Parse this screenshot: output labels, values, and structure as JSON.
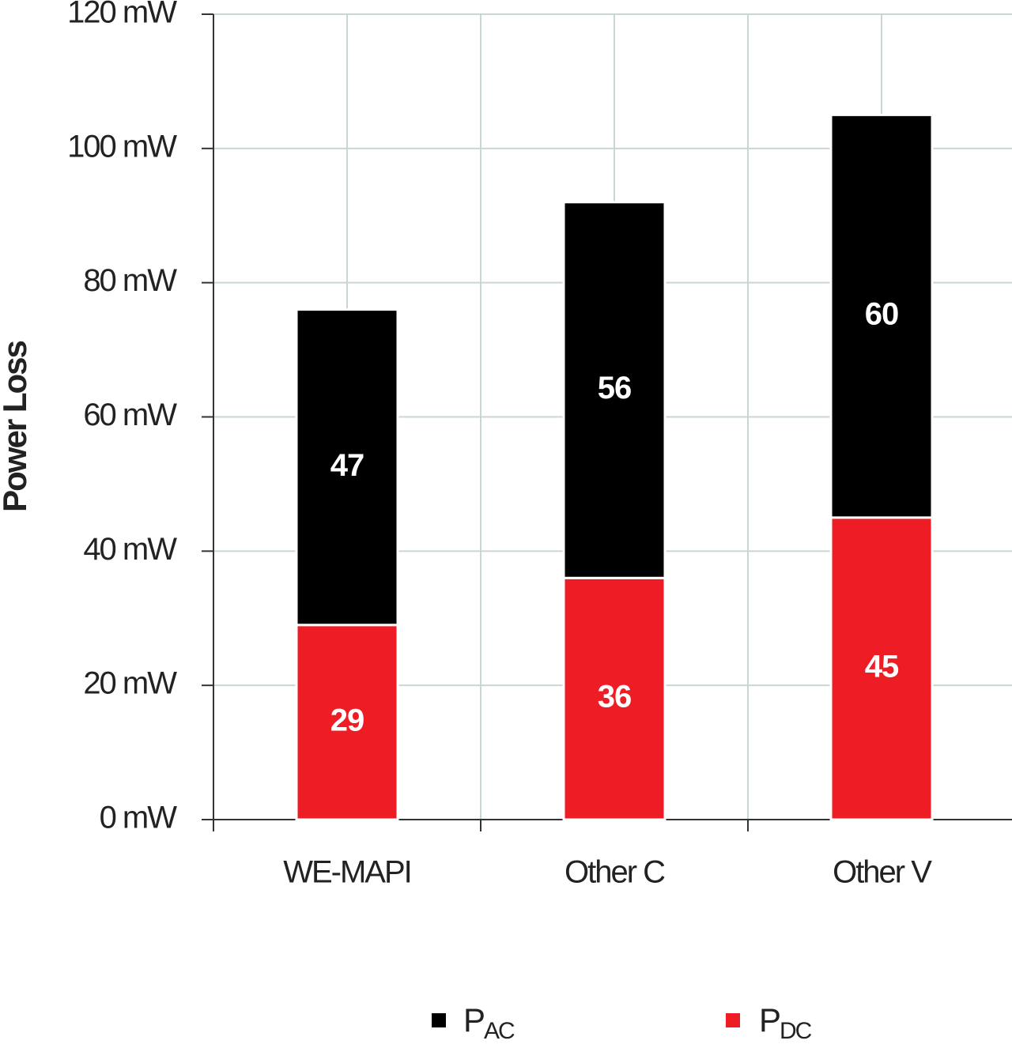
{
  "chart_data": {
    "type": "stacked_bar",
    "y_label": "Power Loss",
    "categories": [
      "WE-MAPI",
      "Other C",
      "Other V"
    ],
    "series": [
      {
        "name": "PDC",
        "color": "#ee1c25",
        "values": [
          29,
          36,
          45
        ]
      },
      {
        "name": "PAC",
        "color": "#000000",
        "values": [
          47,
          56,
          60
        ]
      }
    ],
    "ylim": [
      0,
      120
    ],
    "yticks": [
      {
        "value": 0,
        "label": "0 mW"
      },
      {
        "value": 20,
        "label": "20 mW"
      },
      {
        "value": 40,
        "label": "40 mW"
      },
      {
        "value": 60,
        "label": "60 mW"
      },
      {
        "value": 80,
        "label": "80 mW"
      },
      {
        "value": 100,
        "label": "100 mW"
      },
      {
        "value": 120,
        "label": "120 mW"
      }
    ],
    "grid": true
  }
}
